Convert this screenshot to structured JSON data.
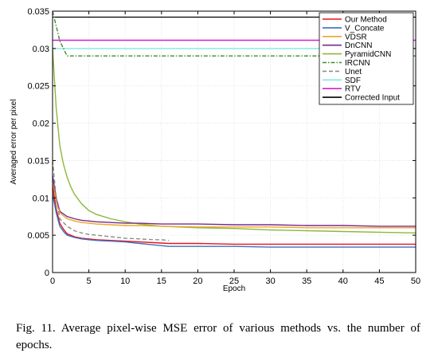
{
  "chart_data": {
    "type": "line",
    "xlabel": "Epoch",
    "ylabel": "Averaged error per pixel",
    "xlim": [
      0,
      50
    ],
    "ylim": [
      0,
      0.035
    ],
    "xticks": [
      0,
      5,
      10,
      15,
      20,
      25,
      30,
      35,
      40,
      45,
      50
    ],
    "yticks": [
      0,
      0.005,
      0.01,
      0.015,
      0.02,
      0.025,
      0.03,
      0.035
    ],
    "xtick_labels": [
      "0",
      "5",
      "10",
      "15",
      "20",
      "25",
      "30",
      "35",
      "40",
      "45",
      "50"
    ],
    "ytick_labels": [
      "0",
      "0.005",
      "0.01",
      "0.015",
      "0.02",
      "0.025",
      "0.03",
      "0.035"
    ],
    "grid": true,
    "legend_position": "top-right",
    "series": [
      {
        "name": "Our Method",
        "color": "#e8141b",
        "style": "solid",
        "x": [
          0,
          0.5,
          1,
          1.5,
          2,
          3,
          4,
          5,
          6,
          8,
          10,
          12,
          14,
          16,
          20,
          25,
          30,
          35,
          40,
          45,
          50
        ],
        "y": [
          0.0115,
          0.0085,
          0.0066,
          0.0058,
          0.0052,
          0.0048,
          0.0046,
          0.0045,
          0.0044,
          0.0043,
          0.0042,
          0.0041,
          0.004,
          0.0039,
          0.0039,
          0.0038,
          0.0038,
          0.0038,
          0.0038,
          0.0038,
          0.0038
        ]
      },
      {
        "name": "V_Concate",
        "color": "#3f6fc2",
        "style": "solid",
        "x": [
          0,
          0.5,
          1,
          1.5,
          2,
          3,
          4,
          5,
          6,
          8,
          10,
          12,
          14,
          16,
          20,
          25,
          30,
          35,
          40,
          45,
          50
        ],
        "y": [
          0.0105,
          0.008,
          0.0062,
          0.0055,
          0.005,
          0.0047,
          0.0045,
          0.0044,
          0.0043,
          0.0042,
          0.0041,
          0.0039,
          0.0037,
          0.0035,
          0.0035,
          0.0035,
          0.0034,
          0.0034,
          0.0034,
          0.0034,
          0.0034
        ]
      },
      {
        "name": "VDSR",
        "color": "#e8a92c",
        "style": "solid",
        "x": [
          0,
          0.5,
          1,
          2,
          3,
          4,
          5,
          6,
          8,
          10,
          12,
          15,
          20,
          25,
          30,
          35,
          40,
          45,
          50
        ],
        "y": [
          0.012,
          0.0095,
          0.008,
          0.0072,
          0.0069,
          0.0067,
          0.0066,
          0.0065,
          0.0064,
          0.0063,
          0.0063,
          0.0062,
          0.0061,
          0.0061,
          0.0061,
          0.006,
          0.006,
          0.006,
          0.006
        ]
      },
      {
        "name": "DnCNN",
        "color": "#7a2a8c",
        "style": "solid",
        "x": [
          0,
          0.5,
          1,
          2,
          3,
          4,
          5,
          6,
          8,
          10,
          12,
          15,
          20,
          25,
          30,
          35,
          40,
          45,
          50
        ],
        "y": [
          0.013,
          0.01,
          0.0082,
          0.0075,
          0.0072,
          0.007,
          0.0069,
          0.0068,
          0.0067,
          0.0066,
          0.0066,
          0.0065,
          0.0065,
          0.0064,
          0.0064,
          0.0063,
          0.0063,
          0.0062,
          0.0062
        ]
      },
      {
        "name": "PyramidCNN",
        "color": "#8db83b",
        "style": "solid",
        "x": [
          0,
          0.5,
          1,
          1.5,
          2,
          2.5,
          3,
          4,
          5,
          6,
          7,
          8,
          10,
          12,
          15,
          20,
          25,
          30,
          35,
          40,
          45,
          50
        ],
        "y": [
          0.03,
          0.022,
          0.017,
          0.0145,
          0.0128,
          0.0115,
          0.0105,
          0.0092,
          0.0083,
          0.0078,
          0.0075,
          0.0072,
          0.0068,
          0.0065,
          0.0062,
          0.006,
          0.0059,
          0.0057,
          0.0056,
          0.0055,
          0.0054,
          0.0053
        ]
      },
      {
        "name": "IRCNN",
        "color": "#3f8a2c",
        "style": "dashdot",
        "x": [
          0,
          0.5,
          1,
          2,
          5,
          10,
          15,
          20,
          25,
          30,
          35,
          40,
          45,
          50
        ],
        "y": [
          0.035,
          0.033,
          0.031,
          0.029,
          0.029,
          0.029,
          0.029,
          0.029,
          0.029,
          0.029,
          0.029,
          0.029,
          0.029,
          0.029
        ]
      },
      {
        "name": "Unet",
        "color": "#8c8c8c",
        "style": "dashed",
        "x": [
          0,
          0.5,
          1,
          2,
          3,
          4,
          5,
          6,
          8,
          10,
          12,
          14,
          15,
          16
        ],
        "y": [
          0.015,
          0.01,
          0.0072,
          0.0062,
          0.0056,
          0.0053,
          0.0051,
          0.005,
          0.0048,
          0.0046,
          0.0045,
          0.0044,
          0.0044,
          0.0043
        ]
      },
      {
        "name": "SDF",
        "color": "#7fe8e0",
        "style": "solid",
        "x": [
          0,
          50
        ],
        "y": [
          0.03,
          0.03
        ]
      },
      {
        "name": "RTV",
        "color": "#d41fd4",
        "style": "solid",
        "x": [
          0,
          50
        ],
        "y": [
          0.0311,
          0.0311
        ]
      },
      {
        "name": "Corrected Input",
        "color": "#000000",
        "style": "solid",
        "x": [
          0,
          50
        ],
        "y": [
          0.0342,
          0.0342
        ]
      }
    ]
  },
  "caption": {
    "text": "Fig. 11.  Average pixel-wise MSE error of various methods vs. the number of epochs."
  }
}
